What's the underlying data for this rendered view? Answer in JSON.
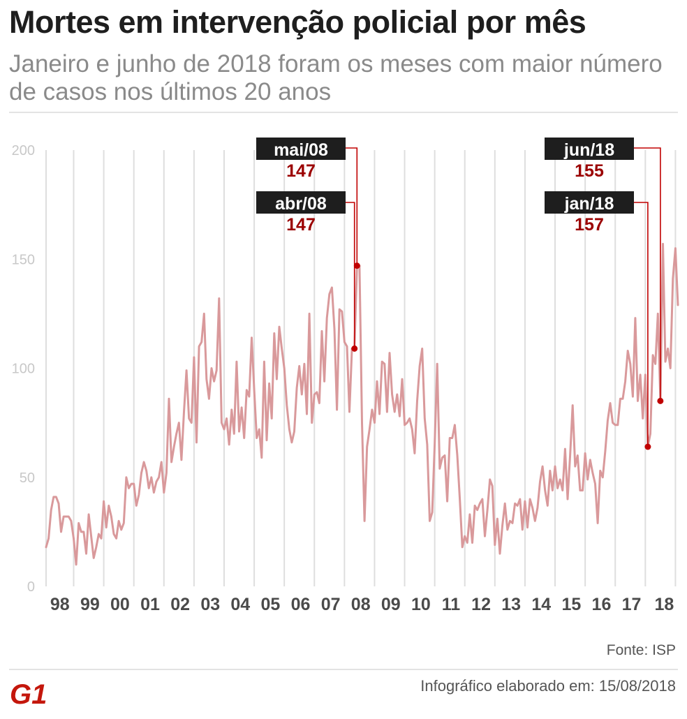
{
  "chart_data": {
    "type": "line",
    "title": "Mortes em intervenção policial por mês",
    "subtitle": "Janeiro e junho de 2018 foram os meses com maior número de casos nos últimos 20 anos",
    "ylim": [
      0,
      200
    ],
    "yticks": [
      "0",
      "50",
      "100",
      "150",
      "200"
    ],
    "xtick_labels": [
      "98",
      "99",
      "00",
      "01",
      "02",
      "03",
      "04",
      "05",
      "06",
      "07",
      "08",
      "09",
      "10",
      "11",
      "12",
      "13",
      "14",
      "15",
      "16",
      "17",
      "18"
    ],
    "series_color": "#d9999b",
    "highlight_color": "#c00000",
    "label_bg": "#1e1e1e",
    "values": [
      18,
      22,
      35,
      41,
      41,
      38,
      25,
      32,
      32,
      32,
      30,
      22,
      10,
      29,
      25,
      25,
      15,
      33,
      23,
      13,
      18,
      24,
      22,
      39,
      27,
      37,
      32,
      24,
      22,
      30,
      26,
      29,
      50,
      45,
      47,
      47,
      37,
      42,
      52,
      57,
      53,
      45,
      50,
      43,
      48,
      50,
      57,
      43,
      52,
      86,
      57,
      64,
      70,
      75,
      58,
      80,
      99,
      77,
      75,
      105,
      66,
      110,
      112,
      125,
      95,
      86,
      100,
      94,
      99,
      132,
      75,
      72,
      77,
      65,
      81,
      70,
      103,
      71,
      82,
      68,
      90,
      87,
      114,
      90,
      68,
      72,
      59,
      103,
      67,
      93,
      77,
      116,
      95,
      119,
      109,
      100,
      83,
      72,
      66,
      71,
      91,
      101,
      88,
      102,
      79,
      125,
      75,
      88,
      89,
      84,
      117,
      94,
      123,
      134,
      137,
      118,
      81,
      127,
      126,
      112,
      110,
      80,
      109,
      109,
      147,
      147,
      75,
      30,
      64,
      72,
      81,
      75,
      94,
      79,
      103,
      102,
      80,
      107,
      88,
      80,
      88,
      78,
      95,
      74,
      75,
      77,
      72,
      61,
      85,
      101,
      109,
      77,
      65,
      30,
      34,
      65,
      102,
      54,
      59,
      60,
      39,
      68,
      68,
      74,
      60,
      40,
      18,
      23,
      20,
      33,
      20,
      37,
      35,
      38,
      40,
      23,
      35,
      49,
      46,
      19,
      31,
      15,
      28,
      38,
      26,
      30,
      29,
      38,
      37,
      40,
      26,
      39,
      27,
      40,
      36,
      30,
      36,
      48,
      55,
      44,
      37,
      53,
      44,
      55,
      45,
      49,
      44,
      63,
      40,
      60,
      83,
      55,
      60,
      44,
      44,
      61,
      49,
      58,
      52,
      47,
      29,
      53,
      50,
      62,
      76,
      84,
      75,
      74,
      74,
      86,
      86,
      94,
      108,
      102,
      87,
      123,
      85,
      97,
      77,
      97,
      64,
      70,
      106,
      102,
      125,
      85,
      157,
      103,
      109,
      100,
      141,
      155,
      129
    ],
    "annotations": [
      {
        "label": "mai/08",
        "value": "147"
      },
      {
        "label": "abr/08",
        "value": "147"
      },
      {
        "label": "jun/18",
        "value": "155"
      },
      {
        "label": "jan/18",
        "value": "157"
      }
    ]
  },
  "footer": {
    "source": "Fonte: ISP",
    "credit": "Infográfico elaborado em: 15/08/2018",
    "logo_text": "G1"
  }
}
